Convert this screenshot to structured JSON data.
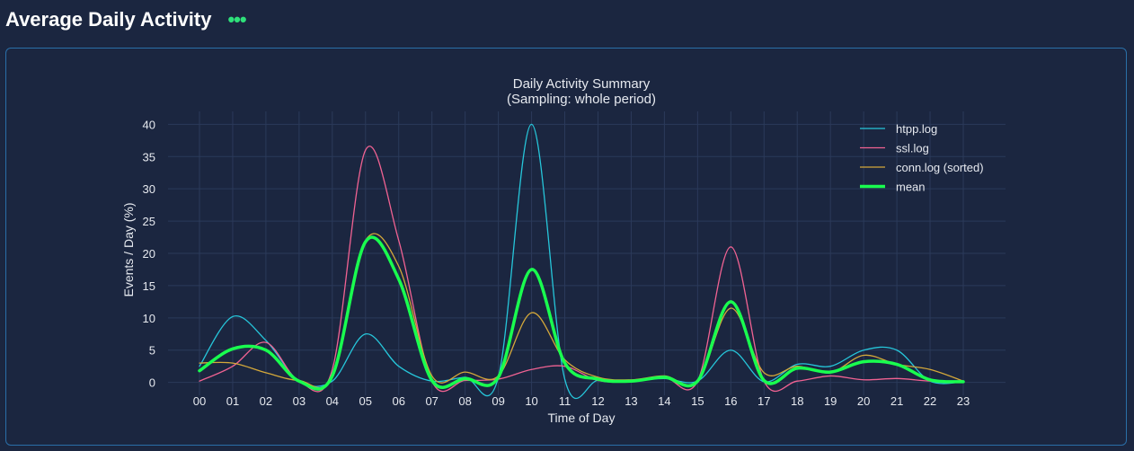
{
  "page": {
    "title": "Average Daily Activity",
    "more_icon": "ellipsis-icon"
  },
  "colors": {
    "accent": "#2ee07a",
    "panel_border": "#2a6fa8",
    "background": "#1b2640"
  },
  "chart_data": {
    "type": "line",
    "title": "Daily Activity Summary",
    "subtitle": "(Sampling: whole period)",
    "xlabel": "Time of Day",
    "ylabel": "Events / Day (%)",
    "x": [
      "00",
      "01",
      "02",
      "03",
      "04",
      "05",
      "06",
      "07",
      "08",
      "09",
      "10",
      "11",
      "12",
      "13",
      "14",
      "15",
      "16",
      "17",
      "18",
      "19",
      "20",
      "21",
      "22",
      "23"
    ],
    "ylim": [
      -2,
      42
    ],
    "yticks": [
      0,
      5,
      10,
      15,
      20,
      25,
      30,
      35,
      40
    ],
    "grid": true,
    "legend_position": "top-right",
    "series": [
      {
        "name": "htpp.log",
        "color": "#26c6da",
        "width": 1.3,
        "values": [
          2.5,
          10.2,
          6.5,
          0.2,
          0.2,
          7.5,
          2.5,
          0.2,
          0.8,
          0.8,
          40.0,
          0.5,
          0.3,
          0.3,
          0.6,
          0.2,
          5.0,
          0.1,
          2.8,
          2.5,
          5.0,
          5.0,
          0.2,
          0.1
        ]
      },
      {
        "name": "ssl.log",
        "color": "#f06292",
        "width": 1.3,
        "values": [
          0.2,
          2.5,
          6.2,
          0.2,
          2.0,
          36.0,
          22.0,
          0.2,
          0.3,
          0.5,
          2.0,
          2.5,
          0.3,
          0.2,
          0.8,
          0.2,
          21.0,
          0.2,
          0.2,
          1.0,
          0.4,
          0.6,
          0.2,
          0.1
        ]
      },
      {
        "name": "conn.log (sorted)",
        "color": "#d4a83a",
        "width": 1.3,
        "values": [
          3.0,
          3.0,
          1.5,
          0.3,
          1.0,
          22.0,
          18.0,
          1.0,
          1.6,
          1.0,
          10.8,
          3.5,
          0.8,
          0.4,
          1.0,
          0.2,
          11.5,
          1.5,
          2.5,
          1.5,
          4.2,
          2.8,
          2.0,
          0.2
        ]
      },
      {
        "name": "mean",
        "color": "#19ff4f",
        "width": 3.5,
        "values": [
          1.8,
          5.2,
          5.0,
          0.2,
          1.0,
          21.8,
          16.0,
          0.3,
          0.6,
          0.8,
          17.5,
          3.0,
          0.5,
          0.2,
          0.8,
          0.2,
          12.5,
          0.3,
          2.2,
          1.6,
          3.2,
          2.8,
          0.4,
          0.1
        ]
      }
    ]
  }
}
